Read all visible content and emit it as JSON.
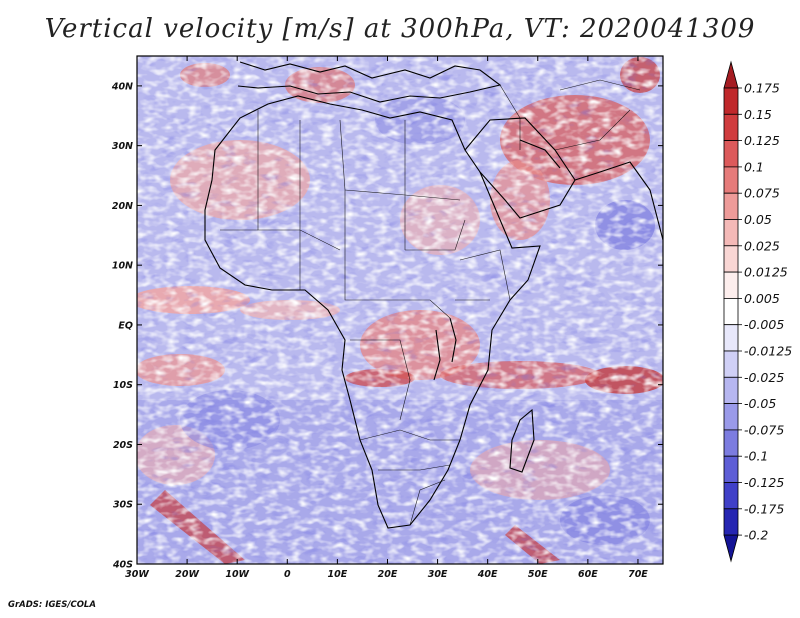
{
  "title": "Vertical velocity [m/s] at 300hPa, VT: 2020041309",
  "credit": "GrADS: IGES/COLA",
  "axes": {
    "lon_range": [
      -30,
      75
    ],
    "lat_range": [
      -40,
      45
    ],
    "x_ticks": [
      "30W",
      "20W",
      "10W",
      "0",
      "10E",
      "20E",
      "30E",
      "40E",
      "50E",
      "60E",
      "70E"
    ],
    "y_ticks": [
      "40N",
      "30N",
      "20N",
      "10N",
      "EQ",
      "10S",
      "20S",
      "30S",
      "40S"
    ]
  },
  "colorbar": {
    "labels": [
      "0.175",
      "0.15",
      "0.125",
      "0.1",
      "0.075",
      "0.05",
      "0.025",
      "0.0125",
      "0.005",
      "-0.005",
      "-0.0125",
      "-0.025",
      "-0.05",
      "-0.075",
      "-0.1",
      "-0.125",
      "-0.175",
      "-0.2"
    ],
    "colors": [
      "#a51c22",
      "#c0282b",
      "#d03c3e",
      "#dc5a5b",
      "#e67b7a",
      "#ee9b99",
      "#f4b9b7",
      "#f9d6d4",
      "#fdeeed",
      "#ffffff",
      "#e8e8fb",
      "#d0d0f6",
      "#b6b6f0",
      "#9a9ae9",
      "#7c7ce0",
      "#5e5ed6",
      "#4040c8",
      "#2626b2",
      "#141496"
    ]
  },
  "field": {
    "bands": [
      {
        "region": "ITCZ band near equator",
        "lat": 5,
        "sign": "ascent"
      },
      {
        "region": "southern tropical band",
        "lat": -10,
        "sign": "ascent"
      },
      {
        "region": "Arabian Peninsula / Iran",
        "lat": 30,
        "sign": "ascent"
      },
      {
        "region": "Sahara / Sahel",
        "lat": 20,
        "sign": "mixed"
      }
    ]
  }
}
